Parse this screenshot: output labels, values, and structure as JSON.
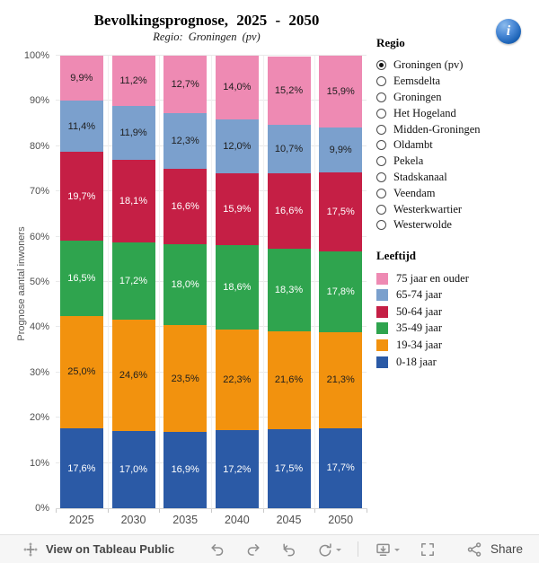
{
  "header": {
    "title": "Bevolkingsprognose, 2025 - 2050",
    "subtitle": "Regio: Groningen (pv)"
  },
  "info": {
    "glyph": "i"
  },
  "region_filter": {
    "label": "Regio",
    "selected": "Groningen (pv)",
    "options": [
      {
        "label": "Groningen (pv)",
        "selected": true
      },
      {
        "label": "Eemsdelta",
        "selected": false
      },
      {
        "label": "Groningen",
        "selected": false
      },
      {
        "label": "Het Hogeland",
        "selected": false
      },
      {
        "label": "Midden-Groningen",
        "selected": false
      },
      {
        "label": "Oldambt",
        "selected": false
      },
      {
        "label": "Pekela",
        "selected": false
      },
      {
        "label": "Stadskanaal",
        "selected": false
      },
      {
        "label": "Veendam",
        "selected": false
      },
      {
        "label": "Westerkwartier",
        "selected": false
      },
      {
        "label": "Westerwolde",
        "selected": false
      }
    ]
  },
  "legend": {
    "label": "Leeftijd",
    "position": "right",
    "items": [
      {
        "label": "75 jaar en ouder",
        "color": "#EE8AB3"
      },
      {
        "label": "65-74 jaar",
        "color": "#7BA0CD"
      },
      {
        "label": "50-64 jaar",
        "color": "#C51F45"
      },
      {
        "label": "35-49 jaar",
        "color": "#2FA44E"
      },
      {
        "label": "19-34 jaar",
        "color": "#F2920E"
      },
      {
        "label": "0-18 jaar",
        "color": "#2B5AA6"
      }
    ]
  },
  "chart_data": {
    "type": "bar",
    "stacked": true,
    "title": "Bevolkingsprognose, 2025 - 2050",
    "subtitle": "Regio: Groningen (pv)",
    "xlabel": "",
    "ylabel": "Prognose aantal inwoners",
    "ylim": [
      0,
      100
    ],
    "grid": true,
    "yticks": [
      "0%",
      "10%",
      "20%",
      "30%",
      "40%",
      "50%",
      "60%",
      "70%",
      "80%",
      "90%",
      "100%"
    ],
    "categories": [
      "2025",
      "2030",
      "2035",
      "2040",
      "2045",
      "2050"
    ],
    "series": [
      {
        "name": "0-18 jaar",
        "color": "#2B5AA6",
        "label_color": "#FFFFFF",
        "values": [
          17.6,
          17.0,
          16.9,
          17.2,
          17.5,
          17.7
        ],
        "labels": [
          "17,6%",
          "17,0%",
          "16,9%",
          "17,2%",
          "17,5%",
          "17,7%"
        ]
      },
      {
        "name": "19-34 jaar",
        "color": "#F2920E",
        "label_color": "#1E1E1E",
        "values": [
          25.0,
          24.6,
          23.5,
          22.3,
          21.6,
          21.3
        ],
        "labels": [
          "25,0%",
          "24,6%",
          "23,5%",
          "22,3%",
          "21,6%",
          "21,3%"
        ]
      },
      {
        "name": "35-49 jaar",
        "color": "#2FA44E",
        "label_color": "#FFFFFF",
        "values": [
          16.5,
          17.2,
          18.0,
          18.6,
          18.3,
          17.8
        ],
        "labels": [
          "16,5%",
          "17,2%",
          "18,0%",
          "18,6%",
          "18,3%",
          "17,8%"
        ]
      },
      {
        "name": "50-64 jaar",
        "color": "#C51F45",
        "label_color": "#FFFFFF",
        "values": [
          19.7,
          18.1,
          16.6,
          15.9,
          16.6,
          17.5
        ],
        "labels": [
          "19,7%",
          "18,1%",
          "16,6%",
          "15,9%",
          "16,6%",
          "17,5%"
        ]
      },
      {
        "name": "65-74 jaar",
        "color": "#7BA0CD",
        "label_color": "#1E1E1E",
        "values": [
          11.4,
          11.9,
          12.3,
          12.0,
          10.7,
          9.9
        ],
        "labels": [
          "11,4%",
          "11,9%",
          "12,3%",
          "12,0%",
          "10,7%",
          "9,9%"
        ]
      },
      {
        "name": "75 jaar en ouder",
        "color": "#EE8AB3",
        "label_color": "#1E1E1E",
        "values": [
          9.9,
          11.2,
          12.7,
          14.0,
          15.2,
          15.9
        ],
        "labels": [
          "9,9%",
          "11,2%",
          "12,7%",
          "14,0%",
          "15,2%",
          "15,9%"
        ]
      }
    ]
  },
  "toolbar": {
    "view_label": "View on Tableau Public",
    "share_label": "Share"
  }
}
